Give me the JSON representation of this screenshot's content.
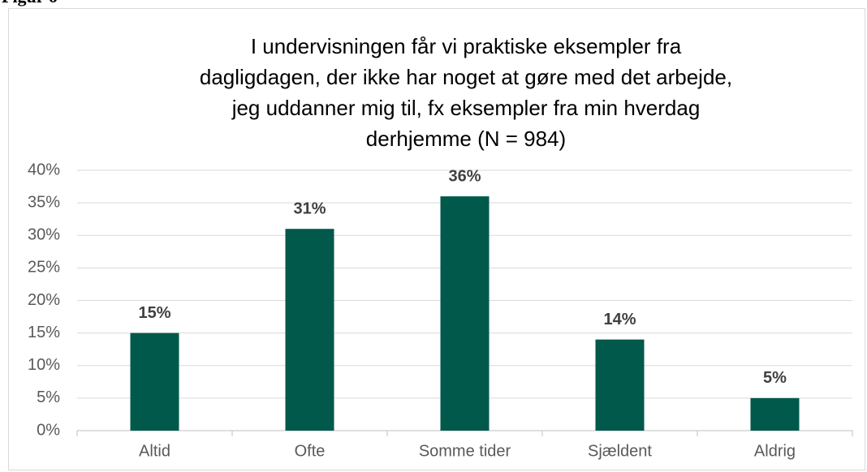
{
  "header": "Figur 6",
  "chart_data": {
    "type": "bar",
    "title": [
      "I undervisningen får vi praktiske eksempler fra",
      "dagligdagen, der ikke har noget at gøre med det arbejde,",
      "jeg uddanner mig til, fx eksempler fra min hverdag",
      "derhjemme (N = 984)"
    ],
    "categories": [
      "Altid",
      "Ofte",
      "Somme tider",
      "Sjældent",
      "Aldrig"
    ],
    "values": [
      15,
      31,
      36,
      14,
      5
    ],
    "value_labels": [
      "15%",
      "31%",
      "36%",
      "14%",
      "5%"
    ],
    "color": "#00594a",
    "ylim": [
      0,
      40
    ],
    "yticks": [
      {
        "value": 0,
        "label": "0%"
      },
      {
        "value": 5,
        "label": "5%"
      },
      {
        "value": 10,
        "label": "10%"
      },
      {
        "value": 15,
        "label": "15%"
      },
      {
        "value": 20,
        "label": "20%"
      },
      {
        "value": 25,
        "label": "25%"
      },
      {
        "value": 30,
        "label": "30%"
      },
      {
        "value": 35,
        "label": "35%"
      },
      {
        "value": 40,
        "label": "40%"
      }
    ],
    "grid": true
  }
}
